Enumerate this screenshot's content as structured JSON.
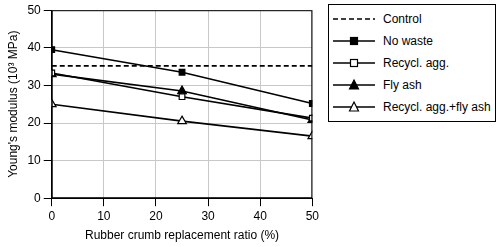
{
  "chart_data": {
    "type": "line",
    "xlabel": "Rubber crumb replacement ratio (%)",
    "ylabel": "Young's modulus (10³ MPa)",
    "x": [
      0,
      25,
      50
    ],
    "xlim": [
      0,
      50
    ],
    "xticks": [
      0,
      10,
      20,
      30,
      40,
      50
    ],
    "ylim": [
      0,
      50
    ],
    "yticks": [
      0,
      10,
      20,
      30,
      40,
      50
    ],
    "grid": true,
    "legend": "right",
    "series": [
      {
        "name": "Control",
        "color": "#000000",
        "values": [
          35.2,
          35.2,
          35.2
        ],
        "marker": "none",
        "line_style": "dashed"
      },
      {
        "name": "No waste",
        "color": "#000000",
        "values": [
          39.5,
          33.5,
          25.2
        ],
        "marker": "square",
        "line_style": "solid"
      },
      {
        "name": "Recycl. agg.",
        "color": "#000000",
        "values": [
          33.3,
          27.0,
          21.3
        ],
        "marker": "square-open",
        "line_style": "solid"
      },
      {
        "name": "Fly ash",
        "color": "#000000",
        "values": [
          33.0,
          28.5,
          20.8
        ],
        "marker": "triangle",
        "line_style": "solid"
      },
      {
        "name": "Recycl. agg.+fly ash",
        "color": "#000000",
        "values": [
          25.0,
          20.5,
          16.5
        ],
        "marker": "triangle-open",
        "line_style": "solid"
      }
    ]
  }
}
